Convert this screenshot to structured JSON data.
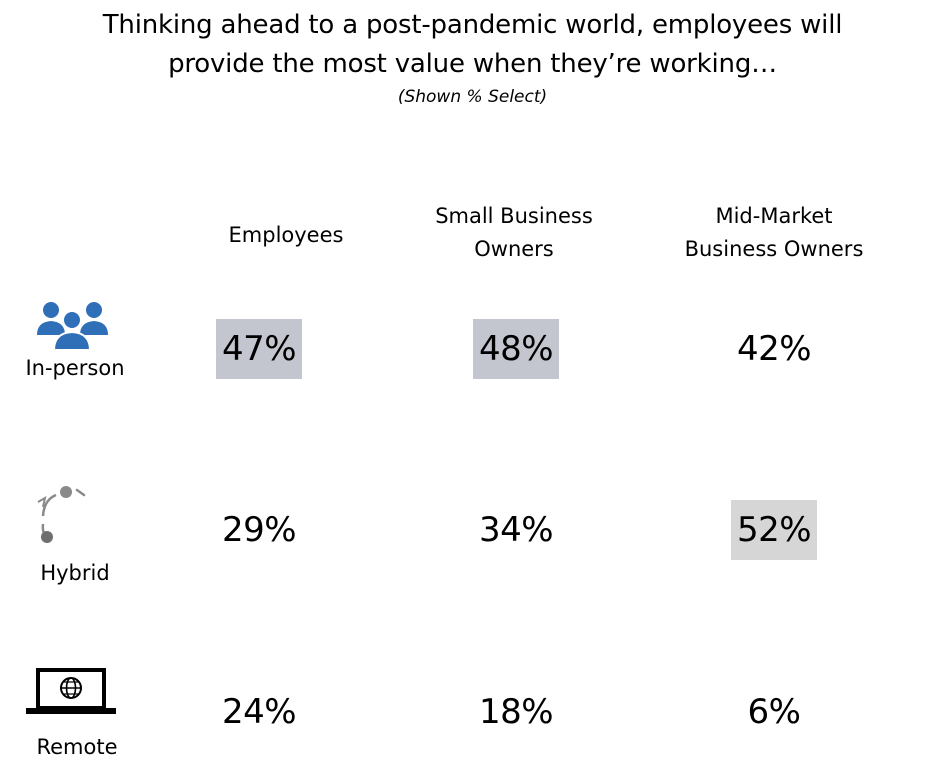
{
  "chart_data": {
    "type": "table",
    "title_lines": [
      "Thinking ahead to a post-pandemic world, employees will",
      "provide the most value when they’re working…"
    ],
    "subtitle": "(Shown % Select)",
    "columns": [
      {
        "lines": [
          "Employees"
        ]
      },
      {
        "lines": [
          "Small Business",
          "Owners"
        ]
      },
      {
        "lines": [
          "Mid-Market",
          "Business Owners"
        ]
      }
    ],
    "rows": [
      {
        "label": "In-person",
        "icon": "people-group-icon",
        "values": [
          "47%",
          "48%",
          "42%"
        ],
        "highlight": [
          true,
          true,
          false
        ]
      },
      {
        "label": "Hybrid",
        "icon": "hybrid-cycle-icon",
        "values": [
          "29%",
          "34%",
          "52%"
        ],
        "highlight": [
          false,
          false,
          true
        ]
      },
      {
        "label": "Remote",
        "icon": "laptop-globe-icon",
        "values": [
          "24%",
          "18%",
          "6%"
        ],
        "highlight": [
          false,
          false,
          false
        ]
      }
    ],
    "colors": {
      "icon_blue": "#2e6fb8",
      "icon_gray": "#8a8a8a",
      "highlight": "#c3c6cf",
      "highlight_alt": "#d6d6d6"
    }
  }
}
